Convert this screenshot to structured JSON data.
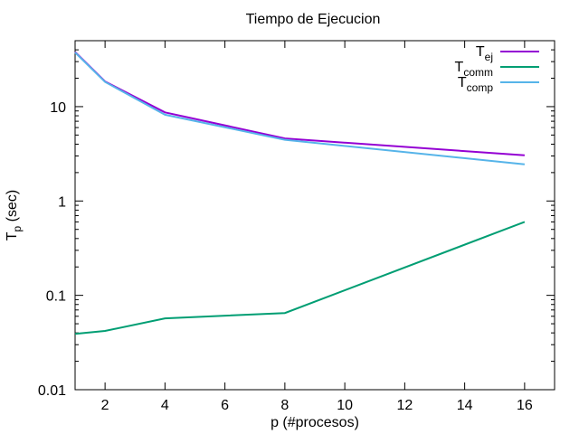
{
  "chart_data": {
    "type": "line",
    "title": "Tiempo de Ejecucion",
    "xlabel": "p (#procesos)",
    "ylabel": {
      "main": "T",
      "sub": "p",
      "rest": " (sec)"
    },
    "xlim": [
      1,
      17
    ],
    "ylim": [
      0.01,
      50
    ],
    "yscale": "log",
    "xticks": [
      2,
      4,
      6,
      8,
      10,
      12,
      14,
      16
    ],
    "yticks": [
      {
        "value": 0.01,
        "label": "0.01"
      },
      {
        "value": 0.1,
        "label": "0.1"
      },
      {
        "value": 1,
        "label": "1"
      },
      {
        "value": 10,
        "label": "10"
      }
    ],
    "grid": false,
    "legend": "top-right",
    "x": [
      1,
      2,
      4,
      8,
      16
    ],
    "series": [
      {
        "name": "T",
        "sub": "ej",
        "color": "#9400d3",
        "values": [
          38,
          18.5,
          8.7,
          4.6,
          3.05
        ]
      },
      {
        "name": "T",
        "sub": "comm",
        "color": "#009e73",
        "values": [
          0.039,
          0.042,
          0.057,
          0.065,
          0.6
        ]
      },
      {
        "name": "T",
        "sub": "comp",
        "color": "#56b4e9",
        "values": [
          37.5,
          18.3,
          8.2,
          4.45,
          2.45
        ]
      }
    ]
  }
}
